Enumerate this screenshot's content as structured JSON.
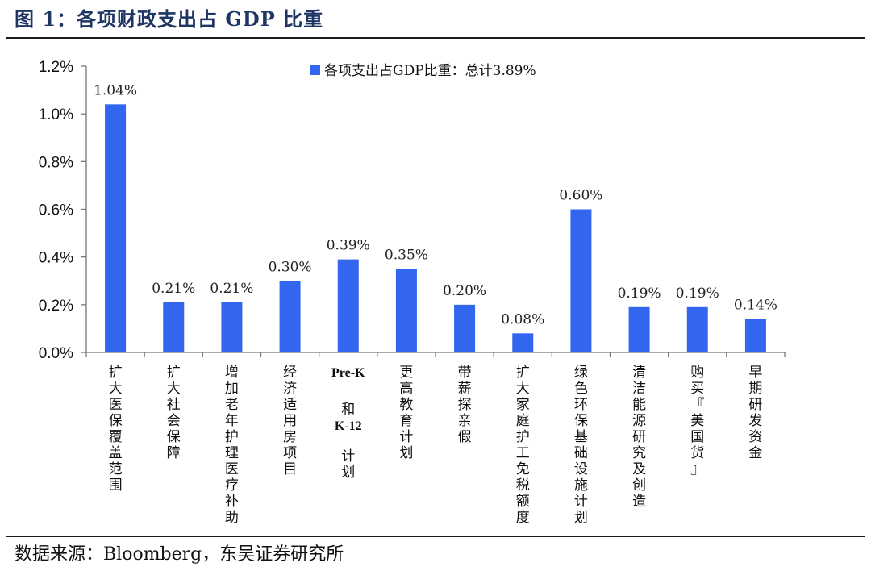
{
  "figure": {
    "title": "图 1：各项财政支出占 GDP 比重",
    "source": "数据来源：Bloomberg，东吴证券研究所"
  },
  "chart_data": {
    "type": "bar",
    "title": "",
    "xlabel": "",
    "ylabel": "",
    "ylim": [
      0,
      1.2
    ],
    "yticks": [
      "0.0%",
      "0.2%",
      "0.4%",
      "0.6%",
      "0.8%",
      "1.0%",
      "1.2%"
    ],
    "grid": false,
    "legend": {
      "position": "top-center",
      "entries": [
        "各项支出占GDP比重：总计3.89%"
      ]
    },
    "categories": [
      "扩大医保覆盖范围",
      "扩大社会保障",
      "增加老年护理医疗补助",
      "经济适用房项目",
      "Pre-K和K-12计划",
      "更高教育计划",
      "带薪探亲假",
      "扩大家庭护工免税额度",
      "绿色环保基础设施计划",
      "清洁能源研究及创造",
      "购买『美国货』",
      "早期研发资金"
    ],
    "series": [
      {
        "name": "各项支出占GDP比重：总计3.89%",
        "color": "#3366ee",
        "values": [
          1.04,
          0.21,
          0.21,
          0.3,
          0.39,
          0.35,
          0.2,
          0.08,
          0.6,
          0.19,
          0.19,
          0.14
        ],
        "labels": [
          "1.04%",
          "0.21%",
          "0.21%",
          "0.30%",
          "0.39%",
          "0.35%",
          "0.20%",
          "0.08%",
          "0.60%",
          "0.19%",
          "0.19%",
          "0.14%"
        ]
      }
    ]
  }
}
